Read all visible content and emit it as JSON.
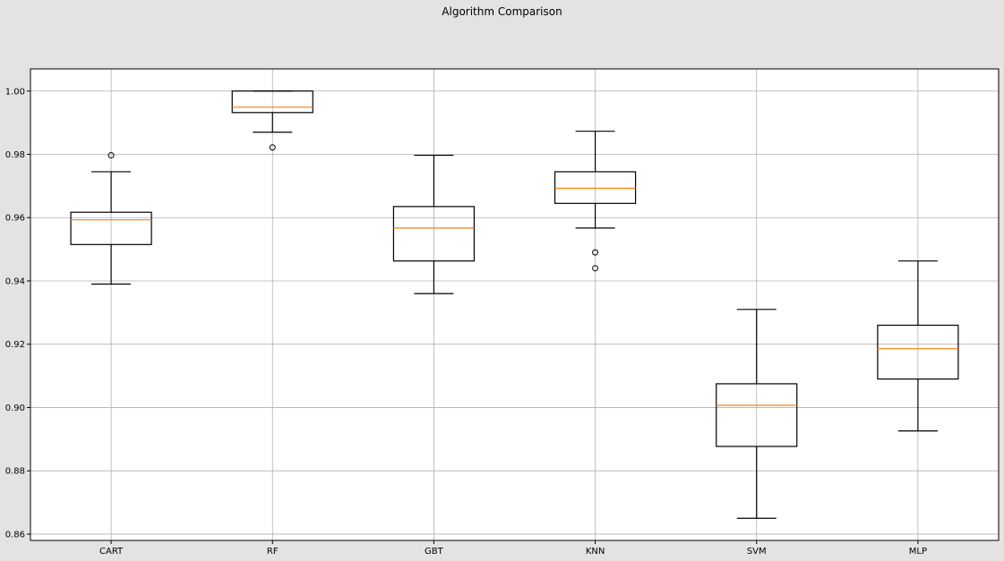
{
  "chart_data": {
    "type": "box",
    "title": "Algorithm Comparison",
    "xlabel": "",
    "ylabel": "",
    "ylim": [
      0.858,
      1.007
    ],
    "yticks": [
      0.86,
      0.88,
      0.9,
      0.92,
      0.94,
      0.96,
      0.98,
      1.0
    ],
    "ytick_labels": [
      "0.86",
      "0.88",
      "0.90",
      "0.92",
      "0.94",
      "0.96",
      "0.98",
      "1.00"
    ],
    "grid": true,
    "categories": [
      "CART",
      "RF",
      "GBT",
      "KNN",
      "SVM",
      "MLP"
    ],
    "boxes": [
      {
        "label": "CART",
        "whisker_low": 0.939,
        "q1": 0.9515,
        "median": 0.9593,
        "q3": 0.9617,
        "whisker_high": 0.9745,
        "outliers": [
          0.9797
        ]
      },
      {
        "label": "RF",
        "whisker_low": 0.987,
        "q1": 0.9932,
        "median": 0.9949,
        "q3": 1.0,
        "whisker_high": 1.0,
        "outliers": [
          0.9822
        ]
      },
      {
        "label": "GBT",
        "whisker_low": 0.936,
        "q1": 0.9463,
        "median": 0.9567,
        "q3": 0.9635,
        "whisker_high": 0.9797,
        "outliers": []
      },
      {
        "label": "KNN",
        "whisker_low": 0.9567,
        "q1": 0.9645,
        "median": 0.9693,
        "q3": 0.9745,
        "whisker_high": 0.9873,
        "outliers": [
          0.949,
          0.944
        ]
      },
      {
        "label": "SVM",
        "whisker_low": 0.865,
        "q1": 0.8877,
        "median": 0.9007,
        "q3": 0.9075,
        "whisker_high": 0.931,
        "outliers": []
      },
      {
        "label": "MLP",
        "whisker_low": 0.8926,
        "q1": 0.909,
        "median": 0.9186,
        "q3": 0.926,
        "whisker_high": 0.9463,
        "outliers": []
      }
    ],
    "colors": {
      "background": "#e3e3e3",
      "plot_area": "#ffffff",
      "box": "#000000",
      "median": "#ff7f0e",
      "grid": "#b0b0b0"
    }
  }
}
